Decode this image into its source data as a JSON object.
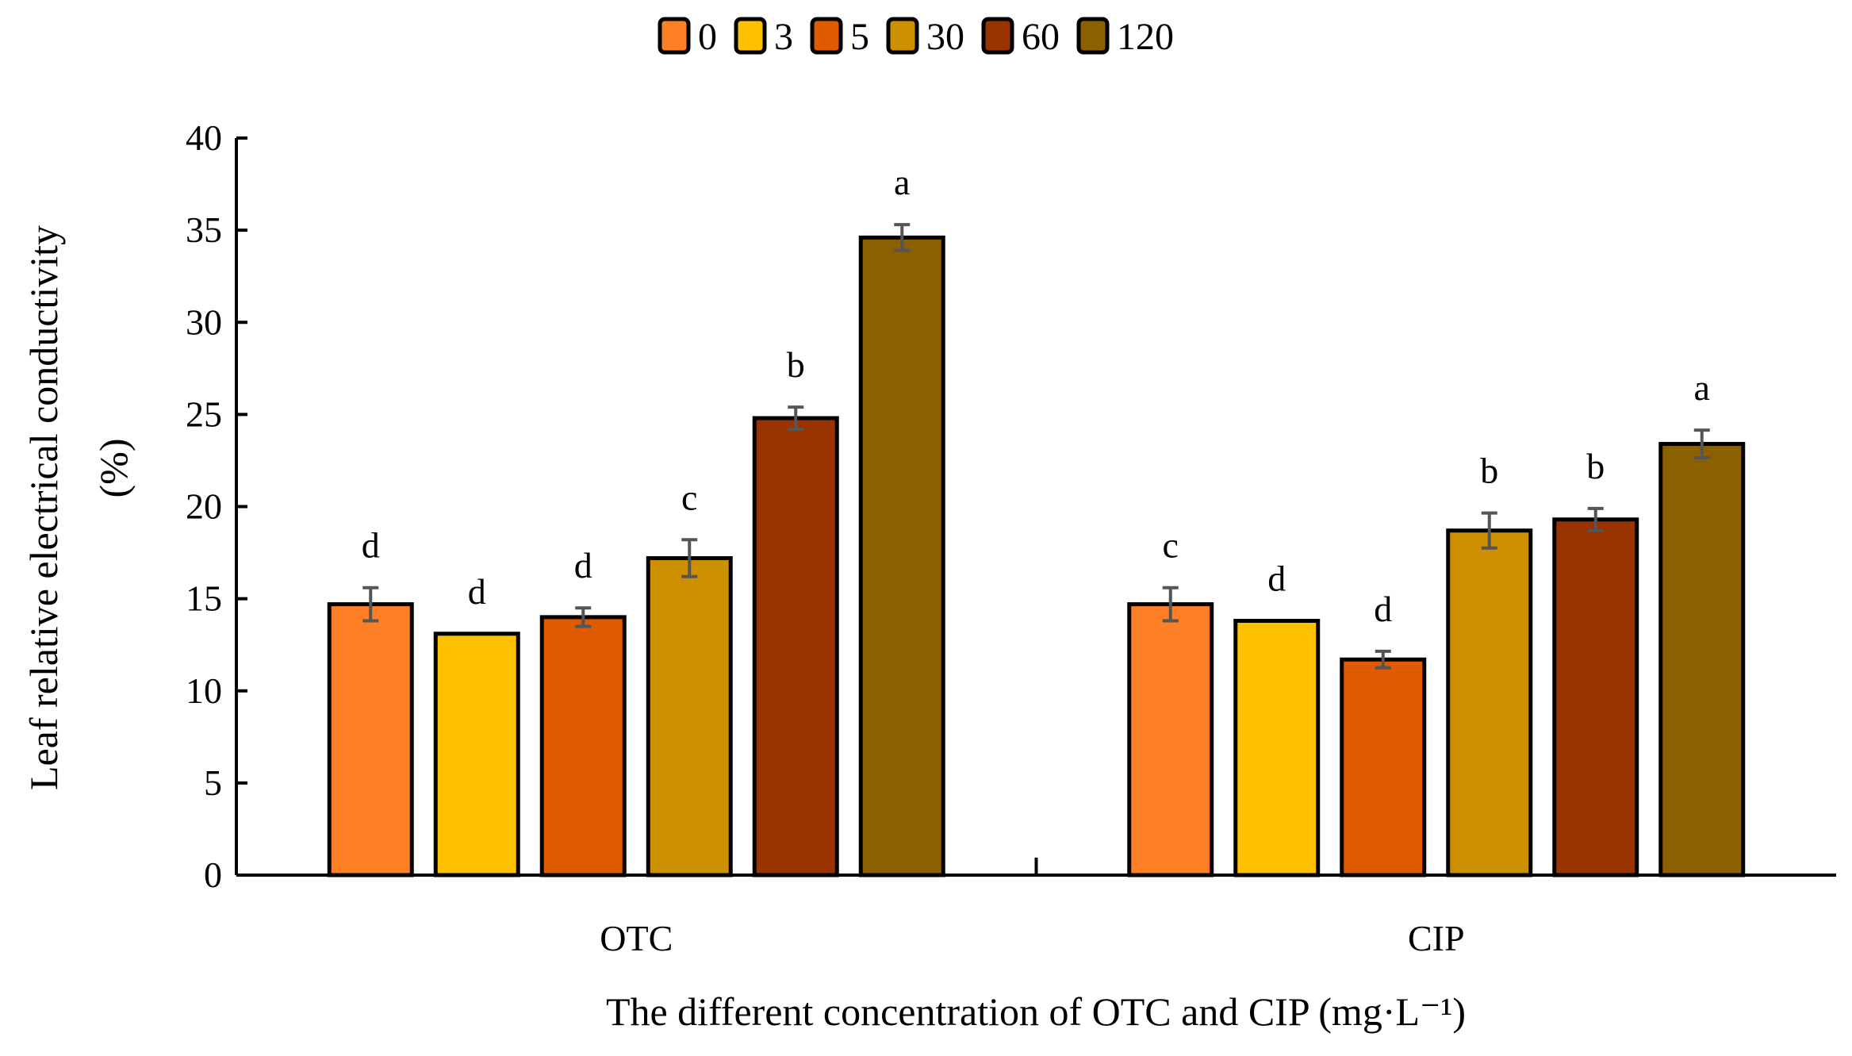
{
  "chart_data": {
    "type": "bar",
    "title": "",
    "xlabel": "The different concentration of OTC and CIP (mg·L⁻¹)",
    "ylabel_line1": "Leaf relative electrical conductivity",
    "ylabel_line2": "(%)",
    "ylim": [
      0,
      40
    ],
    "yticks": [
      "0",
      "5",
      "10",
      "15",
      "20",
      "25",
      "30",
      "35",
      "40"
    ],
    "categories": [
      "OTC",
      "CIP"
    ],
    "legend_position": "top-center",
    "series": [
      {
        "name": "0",
        "color": "#FF7F27",
        "values": [
          14.7,
          14.7
        ],
        "errors": [
          0.9,
          0.9
        ],
        "letters": [
          "d",
          "c"
        ]
      },
      {
        "name": "3",
        "color": "#FFC000",
        "values": [
          13.1,
          13.8
        ],
        "errors": [
          0,
          0
        ],
        "letters": [
          "d",
          "d"
        ]
      },
      {
        "name": "5",
        "color": "#E05A00",
        "values": [
          14.0,
          11.7
        ],
        "errors": [
          0.5,
          0.45
        ],
        "letters": [
          "d",
          "d"
        ]
      },
      {
        "name": "30",
        "color": "#CC9000",
        "values": [
          17.2,
          18.7
        ],
        "errors": [
          1.0,
          0.95
        ],
        "letters": [
          "c",
          "b"
        ]
      },
      {
        "name": "60",
        "color": "#993300",
        "values": [
          24.8,
          19.3
        ],
        "errors": [
          0.6,
          0.6
        ],
        "letters": [
          "b",
          "b"
        ]
      },
      {
        "name": "120",
        "color": "#8B6000",
        "values": [
          34.6,
          23.4
        ],
        "errors": [
          0.7,
          0.75
        ],
        "letters": [
          "a",
          "a"
        ]
      }
    ]
  }
}
